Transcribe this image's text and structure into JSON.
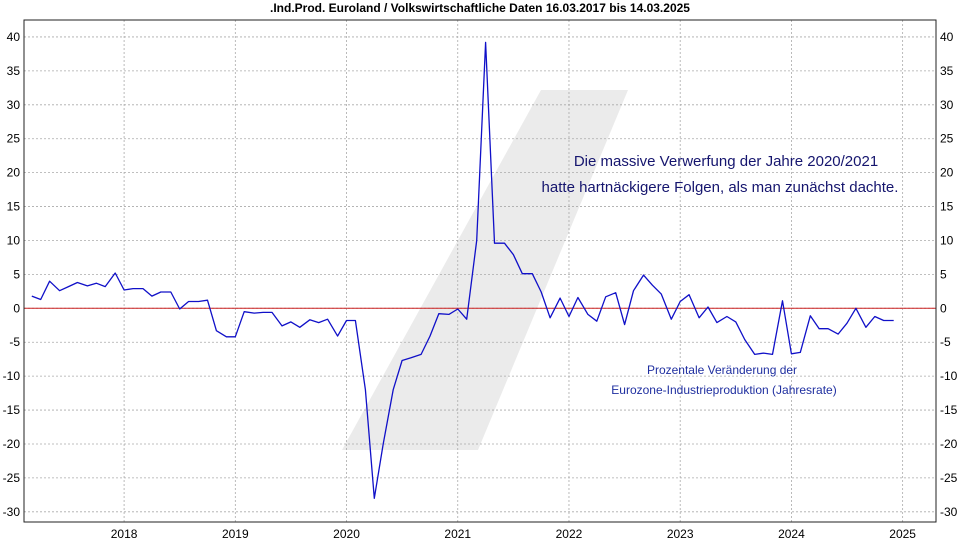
{
  "chart_data": {
    "type": "line",
    "title": ".Ind.Prod. Euroland / Volkswirtschaftliche Daten 16.03.2017 bis 14.03.2025",
    "xlabel": "",
    "ylabel": "",
    "xlim": [
      2017.1,
      2025.3
    ],
    "ylim": [
      -31.5,
      42.5
    ],
    "y_ticks": [
      40,
      35,
      30,
      25,
      20,
      15,
      10,
      5,
      0,
      -5,
      -10,
      -15,
      -20,
      -25,
      -30
    ],
    "x_ticks": [
      2018,
      2019,
      2020,
      2021,
      2022,
      2023,
      2024,
      2025
    ],
    "grid": true,
    "reference_line": 0,
    "annotations": [
      "Die massive Verwerfung der Jahre 2020/2021",
      "hatte hartnäckigere Folgen, als man zunächst dachte.",
      "Prozentale Veränderung der",
      "Eurozone-Industrieproduktion (Jahresrate)"
    ],
    "colors": {
      "series": "#1010c8",
      "zero_line": "#cc2222",
      "annotation_large": "#15156e",
      "annotation_small": "#1f2fa0",
      "watermark": "#ebebeb",
      "grid": "#aaaaaa"
    },
    "series": [
      {
        "x": [
          2017.17,
          2017.25,
          2017.33,
          2017.42,
          2017.5,
          2017.58,
          2017.67,
          2017.75,
          2017.83,
          2017.92,
          2018.0,
          2018.08,
          2018.17,
          2018.25,
          2018.33,
          2018.42,
          2018.5,
          2018.58,
          2018.67,
          2018.75,
          2018.83,
          2018.92,
          2019.0,
          2019.08,
          2019.17,
          2019.25,
          2019.33,
          2019.42,
          2019.5,
          2019.58,
          2019.67,
          2019.75,
          2019.83,
          2019.92,
          2020.0,
          2020.08,
          2020.17,
          2020.25,
          2020.33,
          2020.42,
          2020.5,
          2020.58,
          2020.67,
          2020.75,
          2020.83,
          2020.92,
          2021.0,
          2021.08,
          2021.17,
          2021.25,
          2021.33,
          2021.42,
          2021.5,
          2021.58,
          2021.67,
          2021.75,
          2021.83,
          2021.92,
          2022.0,
          2022.08,
          2022.17,
          2022.25,
          2022.33,
          2022.42,
          2022.5,
          2022.58,
          2022.67,
          2022.75,
          2022.83,
          2022.92,
          2023.0,
          2023.08,
          2023.17,
          2023.25,
          2023.33,
          2023.42,
          2023.5,
          2023.58,
          2023.67,
          2023.75,
          2023.83,
          2023.92,
          2024.0,
          2024.08,
          2024.17,
          2024.25,
          2024.33,
          2024.42,
          2024.5,
          2024.58,
          2024.67,
          2024.75,
          2024.83,
          2024.92
        ],
        "values": [
          1.8,
          1.3,
          4.0,
          2.6,
          3.2,
          3.8,
          3.3,
          3.7,
          3.2,
          5.2,
          2.7,
          2.9,
          2.9,
          1.8,
          2.4,
          2.4,
          -0.1,
          1.0,
          1.0,
          1.2,
          -3.3,
          -4.2,
          -4.2,
          -0.5,
          -0.7,
          -0.6,
          -0.6,
          -2.6,
          -2.0,
          -2.8,
          -1.7,
          -2.1,
          -1.6,
          -4.1,
          -1.8,
          -1.8,
          -12.0,
          -28.0,
          -20.0,
          -12.0,
          -7.7,
          -7.3,
          -6.8,
          -4.1,
          -0.8,
          -0.9,
          -0.1,
          -1.6,
          10.0,
          39.2,
          9.6,
          9.6,
          7.9,
          5.1,
          5.1,
          2.4,
          -1.4,
          1.5,
          -1.2,
          1.6,
          -0.9,
          -1.9,
          1.7,
          2.3,
          -2.4,
          2.6,
          4.9,
          3.4,
          2.1,
          -1.6,
          1.0,
          2.0,
          -1.4,
          0.2,
          -2.1,
          -1.2,
          -2.0,
          -4.6,
          -6.8,
          -6.6,
          -6.8,
          1.1,
          -6.7,
          -6.5,
          -1.1,
          -3.0,
          -3.0,
          -3.8,
          -2.2,
          0.0,
          -2.8,
          -1.2,
          -1.8,
          -1.8
        ]
      }
    ]
  }
}
